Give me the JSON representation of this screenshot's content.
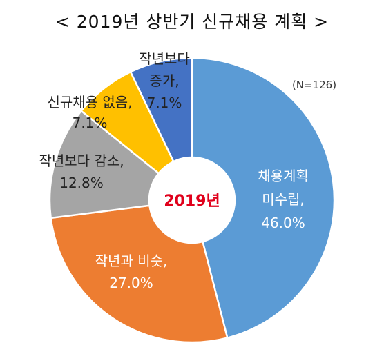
{
  "chart_data": {
    "type": "pie",
    "title": "< 2019년 상반기 신규채용 계획 >",
    "note": "(N=126)",
    "center_label": "2019년",
    "slices": [
      {
        "label_lines": [
          "채용계획",
          "미수립,",
          "46.0%"
        ],
        "value": 46.0,
        "color": "#5b9bd5"
      },
      {
        "label_lines": [
          "작년과 비슷,",
          "27.0%"
        ],
        "value": 27.0,
        "color": "#ed7d31"
      },
      {
        "label_lines": [
          "작년보다 감소,",
          "12.8%"
        ],
        "value": 12.8,
        "color": "#a5a5a5"
      },
      {
        "label_lines": [
          "신규채용 없음,",
          "7.1%"
        ],
        "value": 7.1,
        "color": "#ffc000"
      },
      {
        "label_lines": [
          "작년보다",
          "증가,",
          "7.1%"
        ],
        "value": 7.1,
        "color": "#4472c4"
      }
    ]
  }
}
